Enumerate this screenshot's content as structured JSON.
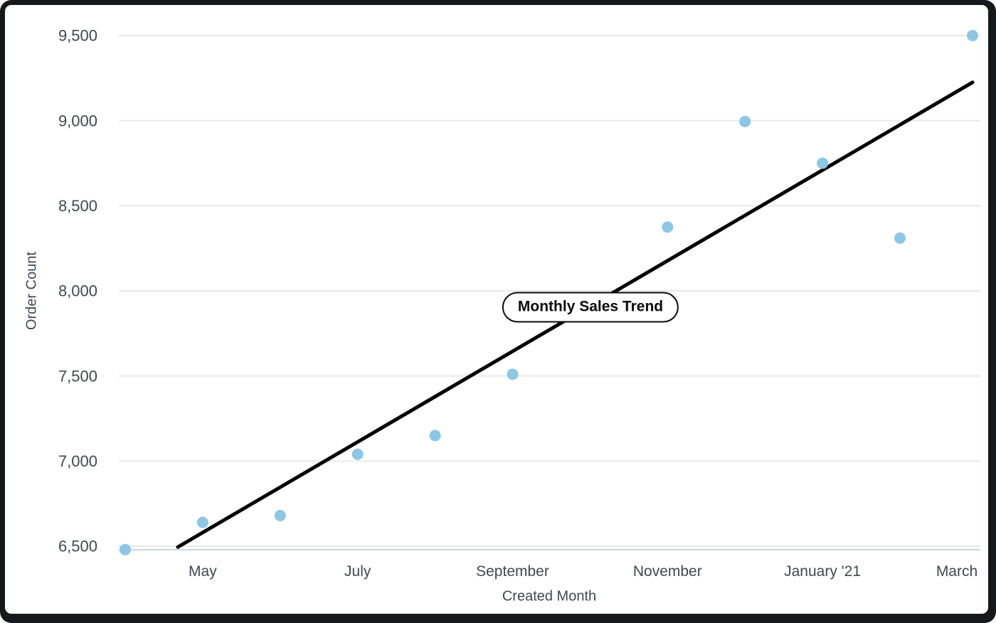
{
  "window": {
    "frame_color": "#16191c",
    "card_color": "#ffffff"
  },
  "chart_data": {
    "type": "scatter",
    "title": "Monthly Sales Trend",
    "xlabel": "Created Month",
    "ylabel": "Order Count",
    "ylim": [
      6500,
      9500
    ],
    "grid": true,
    "legend": "none",
    "x_ticks": [
      {
        "index": 1,
        "label": "May"
      },
      {
        "index": 3,
        "label": "July"
      },
      {
        "index": 5,
        "label": "September"
      },
      {
        "index": 7,
        "label": "November"
      },
      {
        "index": 9,
        "label": "January '21"
      },
      {
        "index": 11,
        "label": "March"
      }
    ],
    "y_ticks": [
      {
        "value": 6500,
        "label": "6,500"
      },
      {
        "value": 7000,
        "label": "7,000"
      },
      {
        "value": 7500,
        "label": "7,500"
      },
      {
        "value": 8000,
        "label": "8,000"
      },
      {
        "value": 8500,
        "label": "8,500"
      },
      {
        "value": 9000,
        "label": "9,000"
      },
      {
        "value": 9500,
        "label": "9,500"
      }
    ],
    "points": [
      {
        "index": 0,
        "value": 6480
      },
      {
        "index": 1,
        "value": 6640
      },
      {
        "index": 2,
        "value": 6680
      },
      {
        "index": 3,
        "value": 7040
      },
      {
        "index": 4,
        "value": 7150
      },
      {
        "index": 5,
        "value": 7510
      },
      {
        "index": 7,
        "value": 8375
      },
      {
        "index": 8,
        "value": 8995
      },
      {
        "index": 9,
        "value": 8750
      },
      {
        "index": 10,
        "value": 8310
      },
      {
        "index": 11,
        "value": 9500
      }
    ],
    "trend_line": {
      "start": {
        "index": 0.68,
        "value": 6495
      },
      "end": {
        "index": 10.94,
        "value": 9225
      }
    },
    "colors": {
      "dot": "#8cc7e5",
      "trend": "#000000",
      "grid": "#e9e9e9",
      "baseline": "#c9d6e8",
      "text": "#41484e"
    }
  }
}
